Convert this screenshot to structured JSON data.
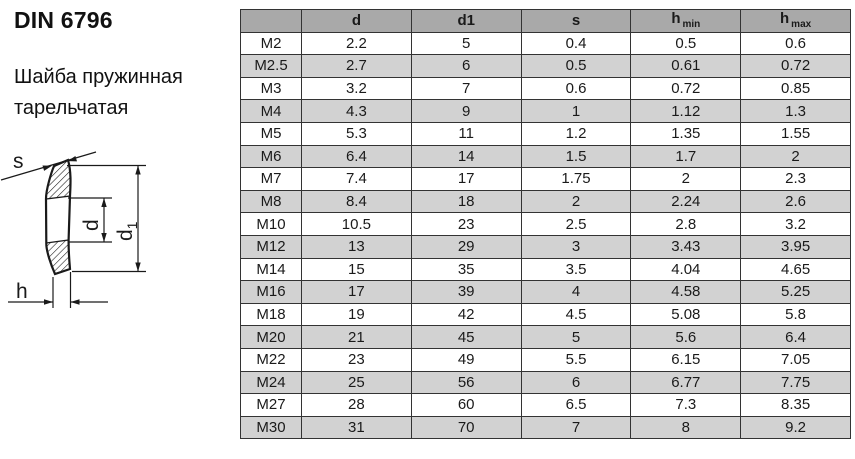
{
  "title": "DIN 6796",
  "subtitle_line1": "Шайба пружинная",
  "subtitle_line2": "тарельчатая",
  "drawing": {
    "s_label": "s",
    "d_label": "d",
    "d1_base": "d",
    "d1_sub": "1",
    "h_label": "h"
  },
  "table": {
    "headers": [
      {
        "base": "",
        "sub": ""
      },
      {
        "base": "d",
        "sub": ""
      },
      {
        "base": "d1",
        "sub": ""
      },
      {
        "base": "s",
        "sub": ""
      },
      {
        "base": "h",
        "sub": "min"
      },
      {
        "base": "h",
        "sub": "max"
      }
    ],
    "rows": [
      [
        "M2",
        "2.2",
        "5",
        "0.4",
        "0.5",
        "0.6"
      ],
      [
        "M2.5",
        "2.7",
        "6",
        "0.5",
        "0.61",
        "0.72"
      ],
      [
        "M3",
        "3.2",
        "7",
        "0.6",
        "0.72",
        "0.85"
      ],
      [
        "M4",
        "4.3",
        "9",
        "1",
        "1.12",
        "1.3"
      ],
      [
        "M5",
        "5.3",
        "11",
        "1.2",
        "1.35",
        "1.55"
      ],
      [
        "M6",
        "6.4",
        "14",
        "1.5",
        "1.7",
        "2"
      ],
      [
        "M7",
        "7.4",
        "17",
        "1.75",
        "2",
        "2.3"
      ],
      [
        "M8",
        "8.4",
        "18",
        "2",
        "2.24",
        "2.6"
      ],
      [
        "M10",
        "10.5",
        "23",
        "2.5",
        "2.8",
        "3.2"
      ],
      [
        "M12",
        "13",
        "29",
        "3",
        "3.43",
        "3.95"
      ],
      [
        "M14",
        "15",
        "35",
        "3.5",
        "4.04",
        "4.65"
      ],
      [
        "M16",
        "17",
        "39",
        "4",
        "4.58",
        "5.25"
      ],
      [
        "M18",
        "19",
        "42",
        "4.5",
        "5.08",
        "5.8"
      ],
      [
        "M20",
        "21",
        "45",
        "5",
        "5.6",
        "6.4"
      ],
      [
        "M22",
        "23",
        "49",
        "5.5",
        "6.15",
        "7.05"
      ],
      [
        "M24",
        "25",
        "56",
        "6",
        "6.77",
        "7.75"
      ],
      [
        "M27",
        "28",
        "60",
        "6.5",
        "7.3",
        "8.35"
      ],
      [
        "M30",
        "31",
        "70",
        "7",
        "8",
        "9.2"
      ]
    ]
  },
  "colors": {
    "header_bg": "#a9a9a9",
    "row_alt_bg": "#d2d2d2",
    "row_bg": "#ffffff",
    "border": "#333333",
    "ink": "#1a1a1a"
  }
}
